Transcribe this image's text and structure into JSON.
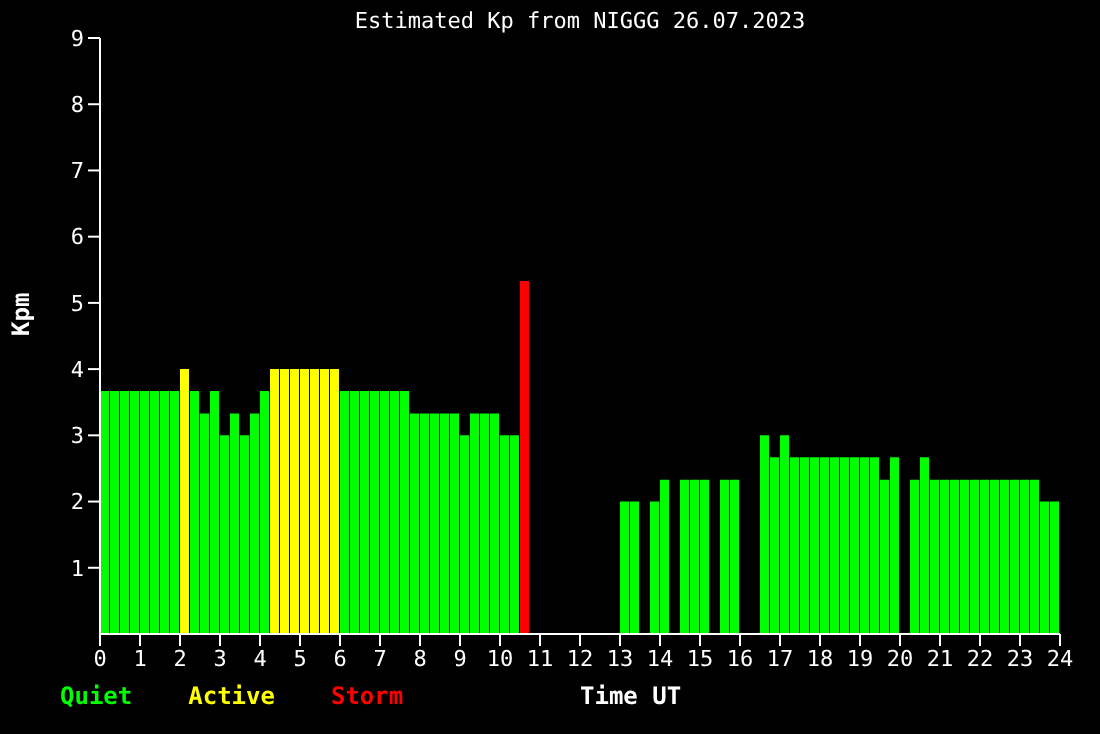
{
  "chart_data": {
    "type": "bar",
    "title": "Estimated Kp from NIGGG 26.07.2023",
    "xlabel": "Time UT",
    "ylabel": "Kpm",
    "x": [
      0.125,
      0.375,
      0.625,
      0.875,
      1.125,
      1.375,
      1.625,
      1.875,
      2.125,
      2.375,
      2.625,
      2.875,
      3.125,
      3.375,
      3.625,
      3.875,
      4.125,
      4.375,
      4.625,
      4.875,
      5.125,
      5.375,
      5.625,
      5.875,
      6.125,
      6.375,
      6.625,
      6.875,
      7.125,
      7.375,
      7.625,
      7.875,
      8.125,
      8.375,
      8.625,
      8.875,
      9.125,
      9.375,
      9.625,
      9.875,
      10.125,
      10.375,
      10.625,
      10.875,
      11.125,
      11.375,
      11.625,
      11.875,
      12.125,
      12.375,
      12.625,
      12.875,
      13.125,
      13.375,
      13.625,
      13.875,
      14.125,
      14.375,
      14.625,
      14.875,
      15.125,
      15.375,
      15.625,
      15.875,
      16.125,
      16.375,
      16.625,
      16.875,
      17.125,
      17.375,
      17.625,
      17.875,
      18.125,
      18.375,
      18.625,
      18.875,
      19.125,
      19.375,
      19.625,
      19.875,
      20.125,
      20.375,
      20.625,
      20.875,
      21.125,
      21.375,
      21.625,
      21.875,
      22.125,
      22.375,
      22.625,
      22.875,
      23.125,
      23.375,
      23.625,
      23.875
    ],
    "series": [
      {
        "name": "Quiet",
        "color": "#00ff00",
        "values": [
          3.67,
          3.67,
          3.67,
          3.67,
          3.67,
          3.67,
          3.67,
          3.67,
          null,
          3.67,
          3.33,
          3.67,
          3,
          3.33,
          3,
          3.33,
          3.67,
          null,
          null,
          null,
          null,
          null,
          null,
          null,
          3.67,
          3.67,
          3.67,
          3.67,
          3.67,
          3.67,
          3.67,
          3.33,
          3.33,
          3.33,
          3.33,
          3.33,
          3,
          3.33,
          3.33,
          3.33,
          3,
          3,
          null,
          null,
          null,
          null,
          null,
          null,
          null,
          null,
          null,
          null,
          2,
          2,
          null,
          2,
          2.33,
          null,
          2.33,
          2.33,
          2.33,
          null,
          2.33,
          2.33,
          null,
          null,
          3,
          2.67,
          3,
          2.67,
          2.67,
          2.67,
          2.67,
          2.67,
          2.67,
          2.67,
          2.67,
          2.67,
          2.33,
          2.67,
          null,
          2.33,
          2.67,
          2.33,
          2.33,
          2.33,
          2.33,
          2.33,
          2.33,
          2.33,
          2.33,
          2.33,
          2.33,
          2.33,
          2,
          2
        ]
      },
      {
        "name": "Active",
        "color": "#ffff00",
        "values": [
          null,
          null,
          null,
          null,
          null,
          null,
          null,
          null,
          4,
          null,
          null,
          null,
          null,
          null,
          null,
          null,
          null,
          4,
          4,
          4,
          4,
          4,
          4,
          4,
          null,
          null,
          null,
          null,
          null,
          null,
          null,
          null,
          null,
          null,
          null,
          null,
          null,
          null,
          null,
          null,
          null,
          null,
          null,
          null,
          null,
          null,
          null,
          null,
          null,
          null,
          null,
          null,
          null,
          null,
          null,
          null,
          null,
          null,
          null,
          null,
          null,
          null,
          null,
          null,
          null,
          null,
          null,
          null,
          null,
          null,
          null,
          null,
          null,
          null,
          null,
          null,
          null,
          null,
          null,
          null,
          null,
          null,
          null,
          null,
          null,
          null,
          null,
          null,
          null,
          null,
          null,
          null,
          null,
          null,
          null,
          null
        ]
      },
      {
        "name": "Storm",
        "color": "#ff0000",
        "values": [
          null,
          null,
          null,
          null,
          null,
          null,
          null,
          null,
          null,
          null,
          null,
          null,
          null,
          null,
          null,
          null,
          null,
          null,
          null,
          null,
          null,
          null,
          null,
          null,
          null,
          null,
          null,
          null,
          null,
          null,
          null,
          null,
          null,
          null,
          null,
          null,
          null,
          null,
          null,
          null,
          null,
          null,
          5.33,
          null,
          null,
          null,
          null,
          null,
          null,
          null,
          null,
          null,
          null,
          null,
          null,
          null,
          null,
          null,
          null,
          null,
          null,
          null,
          null,
          null,
          null,
          null,
          null,
          null,
          null,
          null,
          null,
          null,
          null,
          null,
          null,
          null,
          null,
          null,
          null,
          null,
          null,
          null,
          null,
          null,
          null,
          null,
          null,
          null,
          null,
          null,
          null,
          null,
          null,
          null,
          null,
          null
        ]
      }
    ],
    "xlim": [
      0,
      24
    ],
    "xticks": [
      0,
      1,
      2,
      3,
      4,
      5,
      6,
      7,
      8,
      9,
      10,
      11,
      12,
      13,
      14,
      15,
      16,
      17,
      18,
      19,
      20,
      21,
      22,
      23,
      24
    ],
    "ylim": [
      0,
      9
    ],
    "yticks": [
      1,
      2,
      3,
      4,
      5,
      6,
      7,
      8,
      9
    ],
    "legend": "bottom left"
  }
}
